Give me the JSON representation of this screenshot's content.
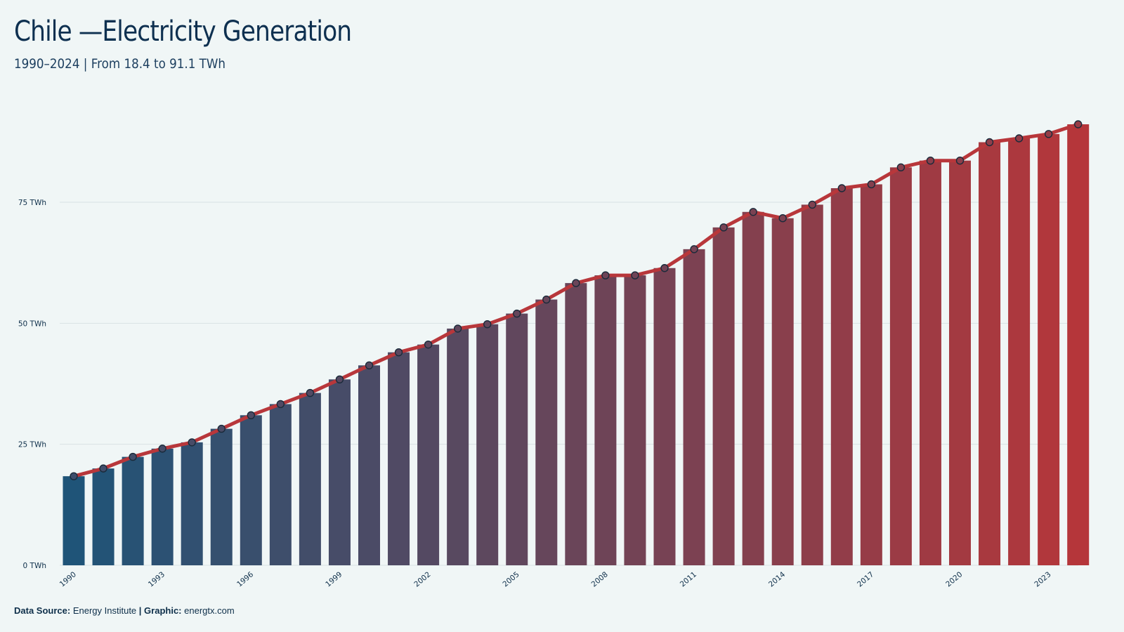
{
  "header": {
    "title": "Chile —Electricity Generation",
    "subtitle": "1990–2024 | From 18.4 to 91.1 TWh"
  },
  "footer": {
    "source_label": "Data Source:",
    "source_value": "Energy Institute",
    "separator": "|",
    "graphic_label": "Graphic:",
    "graphic_value": "energtx.com"
  },
  "colors": {
    "start": "#1f5478",
    "end": "#b5363a",
    "line": "#b8373b",
    "grid": "#d9e2e4",
    "background": "#f0f6f6"
  },
  "chart_data": {
    "type": "bar",
    "overlay": "line",
    "unit": "TWh",
    "ylim": [
      0,
      91.1
    ],
    "yticks": [
      0,
      25,
      50,
      75
    ],
    "ytick_labels": [
      "0 TWh",
      "25 TWh",
      "50 TWh",
      "75 TWh"
    ],
    "xtick_labels": [
      "1990",
      "1993",
      "1996",
      "1999",
      "2002",
      "2005",
      "2008",
      "2011",
      "2014",
      "2017",
      "2020",
      "2023"
    ],
    "grid": true,
    "categories": [
      1990,
      1991,
      1992,
      1993,
      1994,
      1995,
      1996,
      1997,
      1998,
      1999,
      2000,
      2001,
      2002,
      2003,
      2004,
      2005,
      2006,
      2007,
      2008,
      2009,
      2010,
      2011,
      2012,
      2013,
      2014,
      2015,
      2016,
      2017,
      2018,
      2019,
      2020,
      2021,
      2022,
      2023,
      2024
    ],
    "values": [
      18.4,
      20.0,
      22.4,
      24.1,
      25.4,
      28.2,
      31.0,
      33.3,
      35.6,
      38.4,
      41.3,
      44.0,
      45.6,
      48.9,
      49.8,
      52.0,
      54.9,
      58.3,
      59.9,
      59.9,
      61.4,
      65.3,
      69.8,
      73.0,
      71.7,
      74.5,
      77.9,
      78.7,
      82.2,
      83.6,
      83.6,
      87.4,
      88.2,
      89.1,
      91.1
    ]
  }
}
